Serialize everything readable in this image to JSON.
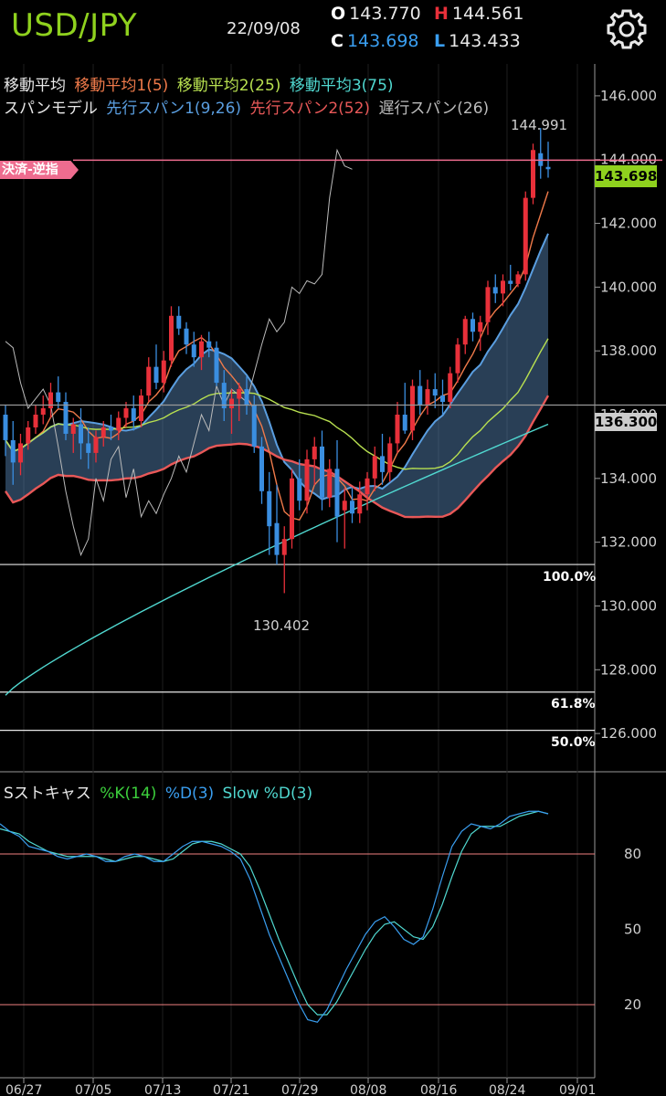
{
  "header": {
    "symbol": "USD/JPY",
    "date": "22/09/08",
    "open_label": "O",
    "open_value": "143.770",
    "high_label": "H",
    "high_value": "144.561",
    "close_label": "C",
    "close_value": "143.698",
    "low_label": "L",
    "low_value": "143.433",
    "settings_icon": "gear-icon"
  },
  "legend": {
    "ma_title": "移動平均",
    "ma1": "移動平均1(5)",
    "ma2": "移動平均2(25)",
    "ma3": "移動平均3(75)",
    "span_title": "スパンモデル",
    "span1": "先行スパン1(9,26)",
    "span2": "先行スパン2(52)",
    "lag": "遅行スパン(26)"
  },
  "tags": {
    "order_tag": "決済-逆指",
    "current_price": "143.698",
    "level_price": "136.300"
  },
  "annotations": {
    "high_label": "144.991",
    "low_label": "130.402"
  },
  "colors": {
    "bull": "#e8303a",
    "bear": "#3a8ee0",
    "ma1": "#f07a4a",
    "ma2": "#b8e050",
    "ma3": "#50d8d0",
    "span1": "#5a9ee0",
    "span2": "#e85858",
    "lag": "#bbbbbb",
    "order_line": "#ee6c8f",
    "current_tag": "#8fd11e",
    "k": "#3cd03c",
    "d": "#3a9ef0",
    "slow_d": "#50d8d0"
  },
  "chart_data": {
    "type": "candlestick",
    "price_axis": {
      "ylim": [
        124.8,
        147.0
      ],
      "ticks": [
        "146.000",
        "144.000",
        "142.000",
        "140.000",
        "138.000",
        "136.000",
        "134.000",
        "132.000",
        "130.000",
        "128.000",
        "126.000"
      ]
    },
    "x_tick_labels": [
      "06/27",
      "07/05",
      "07/13",
      "07/21",
      "07/29",
      "08/08",
      "08/16",
      "08/24",
      "09/01"
    ],
    "fib_levels": [
      {
        "label": "100.0%",
        "price": 131.3
      },
      {
        "label": "61.8%",
        "price": 127.3
      },
      {
        "label": "50.0%",
        "price": 126.1
      }
    ],
    "horizontal_levels": {
      "order": 143.98,
      "current": 143.698,
      "level": 136.3
    },
    "candles": [
      [
        136.0,
        136.3,
        134.7,
        135.2
      ],
      [
        135.2,
        135.8,
        133.8,
        134.5
      ],
      [
        134.5,
        135.4,
        134.1,
        135.1
      ],
      [
        135.1,
        135.8,
        134.9,
        135.6
      ],
      [
        135.6,
        136.3,
        135.4,
        136.0
      ],
      [
        136.0,
        136.6,
        135.7,
        136.2
      ],
      [
        136.2,
        137.0,
        135.9,
        136.7
      ],
      [
        136.7,
        137.2,
        136.2,
        136.4
      ],
      [
        136.4,
        136.7,
        135.2,
        135.4
      ],
      [
        135.4,
        135.9,
        134.8,
        135.7
      ],
      [
        135.7,
        136.2,
        134.6,
        135.1
      ],
      [
        135.1,
        135.6,
        134.3,
        134.8
      ],
      [
        134.8,
        135.5,
        134.5,
        135.3
      ],
      [
        135.3,
        135.8,
        135.0,
        135.6
      ],
      [
        135.6,
        136.0,
        135.2,
        135.5
      ],
      [
        135.5,
        136.1,
        135.2,
        135.9
      ],
      [
        135.9,
        136.4,
        135.6,
        136.2
      ],
      [
        136.2,
        136.6,
        135.5,
        135.8
      ],
      [
        135.8,
        136.8,
        135.6,
        136.6
      ],
      [
        136.6,
        137.8,
        136.4,
        137.5
      ],
      [
        137.5,
        138.2,
        136.8,
        137.0
      ],
      [
        137.0,
        138.0,
        136.7,
        137.7
      ],
      [
        137.7,
        139.4,
        137.5,
        139.1
      ],
      [
        139.1,
        139.4,
        138.5,
        138.7
      ],
      [
        138.7,
        138.9,
        137.9,
        138.2
      ],
      [
        138.2,
        138.6,
        137.5,
        137.8
      ],
      [
        137.8,
        138.5,
        137.4,
        138.3
      ],
      [
        138.3,
        138.6,
        137.8,
        138.1
      ],
      [
        138.1,
        138.3,
        136.9,
        137.0
      ],
      [
        137.0,
        137.4,
        135.8,
        136.2
      ],
      [
        136.2,
        136.8,
        135.4,
        136.5
      ],
      [
        136.5,
        137.0,
        135.8,
        136.8
      ],
      [
        136.8,
        137.2,
        136.0,
        136.3
      ],
      [
        136.3,
        136.6,
        134.8,
        135.0
      ],
      [
        135.0,
        135.3,
        133.2,
        133.6
      ],
      [
        133.6,
        134.2,
        131.6,
        132.5
      ],
      [
        132.6,
        133.8,
        131.3,
        131.6
      ],
      [
        131.6,
        132.5,
        130.402,
        132.1
      ],
      [
        132.1,
        134.3,
        131.8,
        134.0
      ],
      [
        134.0,
        134.6,
        133.0,
        133.3
      ],
      [
        133.3,
        134.9,
        132.9,
        134.6
      ],
      [
        134.6,
        135.3,
        133.8,
        135.0
      ],
      [
        135.0,
        135.5,
        133.0,
        133.4
      ],
      [
        133.4,
        134.6,
        133.1,
        134.3
      ],
      [
        134.3,
        135.2,
        132.0,
        132.8
      ],
      [
        133.0,
        133.7,
        131.8,
        133.3
      ],
      [
        133.3,
        133.7,
        132.6,
        132.9
      ],
      [
        132.9,
        133.9,
        132.6,
        133.5
      ],
      [
        133.5,
        134.2,
        133.0,
        134.0
      ],
      [
        134.0,
        135.0,
        133.6,
        134.7
      ],
      [
        134.7,
        135.4,
        133.8,
        134.2
      ],
      [
        134.2,
        135.3,
        133.9,
        135.1
      ],
      [
        135.1,
        136.4,
        134.8,
        136.0
      ],
      [
        136.0,
        137.0,
        135.4,
        135.5
      ],
      [
        135.5,
        137.1,
        135.2,
        136.9
      ],
      [
        136.9,
        137.4,
        136.0,
        136.3
      ],
      [
        136.3,
        137.1,
        136.0,
        136.8
      ],
      [
        136.8,
        137.3,
        136.2,
        136.6
      ],
      [
        136.6,
        137.1,
        136.0,
        136.4
      ],
      [
        136.4,
        137.5,
        136.2,
        137.3
      ],
      [
        137.3,
        138.4,
        137.0,
        138.2
      ],
      [
        138.2,
        139.1,
        137.9,
        139.0
      ],
      [
        139.0,
        139.2,
        138.3,
        138.6
      ],
      [
        138.6,
        139.1,
        138.0,
        138.9
      ],
      [
        138.9,
        140.2,
        138.5,
        140.0
      ],
      [
        140.0,
        140.4,
        139.5,
        139.8
      ],
      [
        139.8,
        140.4,
        139.4,
        140.2
      ],
      [
        140.2,
        140.7,
        139.9,
        140.1
      ],
      [
        140.1,
        140.5,
        140.0,
        140.4
      ],
      [
        140.4,
        143.0,
        140.2,
        142.8
      ],
      [
        142.8,
        144.5,
        142.6,
        144.3
      ],
      [
        144.2,
        144.991,
        143.4,
        143.8
      ],
      [
        143.77,
        144.561,
        143.433,
        143.698
      ]
    ],
    "stochastic": {
      "ylim": [
        0,
        100
      ],
      "ticks": [
        "80",
        "50",
        "20"
      ],
      "ref_levels": [
        80,
        20
      ],
      "k_values": [
        95,
        90,
        85,
        78,
        83,
        80,
        76,
        78,
        82,
        80,
        76,
        74,
        78,
        82,
        80,
        77,
        75,
        78,
        83,
        86,
        85,
        83,
        84,
        82,
        80,
        74,
        62,
        50,
        40,
        32,
        22,
        14,
        8,
        16,
        25,
        33,
        40,
        48,
        55,
        58,
        52,
        46,
        42,
        44,
        56,
        72,
        85,
        90,
        94,
        92,
        88,
        91,
        95,
        97,
        98,
        97,
        96,
        94
      ],
      "d_values": [
        92,
        89,
        87,
        83,
        82,
        81,
        79,
        78,
        79,
        80,
        79,
        77,
        77,
        79,
        80,
        79,
        77,
        77,
        80,
        83,
        85,
        85,
        84,
        83,
        81,
        78,
        70,
        59,
        48,
        39,
        30,
        21,
        14,
        13,
        18,
        26,
        34,
        41,
        48,
        53,
        55,
        51,
        46,
        44,
        47,
        58,
        71,
        83,
        89,
        92,
        91,
        90,
        92,
        95,
        96,
        97,
        97,
        96
      ],
      "slow_d_values": [
        90,
        89,
        88,
        85,
        83,
        81,
        80,
        79,
        79,
        79,
        79,
        78,
        77,
        78,
        79,
        79,
        78,
        77,
        78,
        81,
        84,
        85,
        85,
        84,
        82,
        80,
        75,
        66,
        56,
        46,
        37,
        28,
        20,
        16,
        16,
        21,
        28,
        35,
        42,
        48,
        52,
        53,
        50,
        47,
        46,
        51,
        60,
        71,
        81,
        88,
        91,
        91,
        91,
        93,
        95,
        96,
        97,
        96
      ]
    }
  }
}
